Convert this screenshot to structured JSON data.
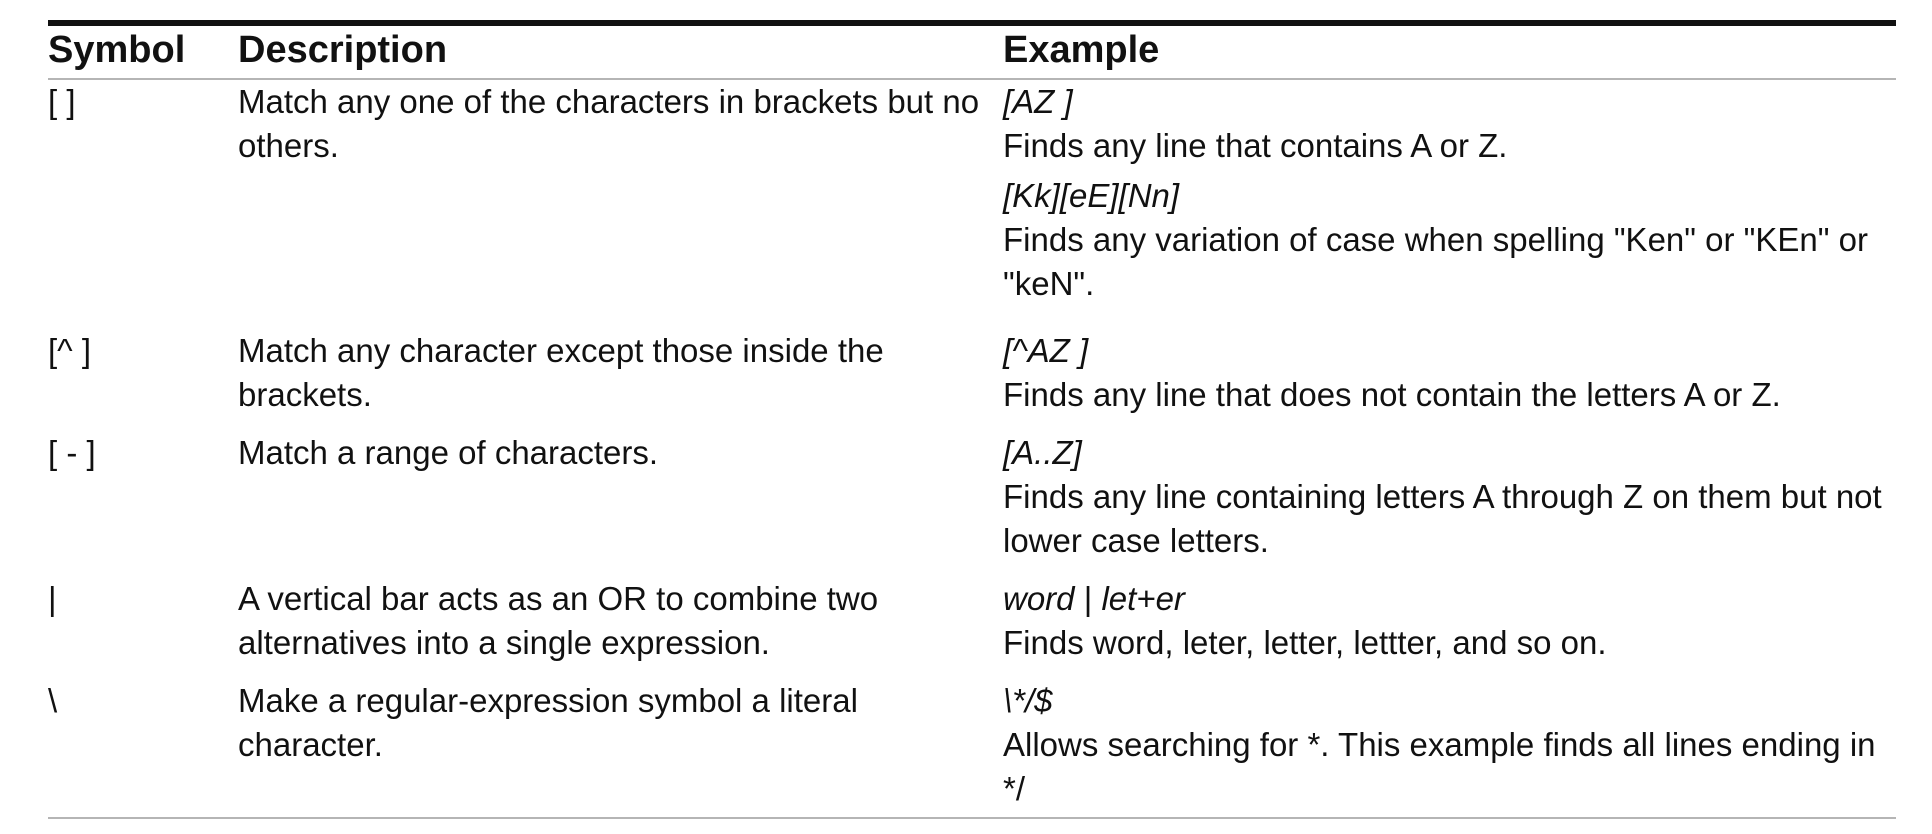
{
  "headers": {
    "symbol": "Symbol",
    "description": "Description",
    "example": "Example"
  },
  "rows": [
    {
      "symbol": "[ ]",
      "description": "Match any one of the characters in brackets but no others.",
      "examples": [
        {
          "code": "[AZ ]",
          "text": "Finds any line that contains A or Z."
        },
        {
          "code": "[Kk][eE][Nn]",
          "text": "Finds any variation of case when spelling \"Ken\" or \"KEn\" or \"keN\"."
        }
      ]
    },
    {
      "symbol": "[^ ]",
      "description": "Match any character except those inside the brackets.",
      "examples": [
        {
          "code": "[^AZ ]",
          "text": "Finds any line that does not contain the letters A or Z."
        }
      ]
    },
    {
      "symbol": "[ - ]",
      "description": "Match a range of characters.",
      "examples": [
        {
          "code": "[A..Z]",
          "text": "Finds any line containing letters A through Z on them but not lower case letters."
        }
      ]
    },
    {
      "symbol": "|",
      "description": "A vertical bar acts as an OR to combine two alternatives into a single expression.",
      "examples": [
        {
          "code_a": "word",
          "code_sep": " | ",
          "code_b": "let+er",
          "text": "Finds word, leter, letter, lettter, and so on."
        }
      ]
    },
    {
      "symbol": "\\",
      "description": "Make a regular-expression symbol a literal character.",
      "examples": [
        {
          "code": "\\*/$",
          "text": "Allows searching for *. This example finds all lines ending in */"
        }
      ]
    }
  ]
}
